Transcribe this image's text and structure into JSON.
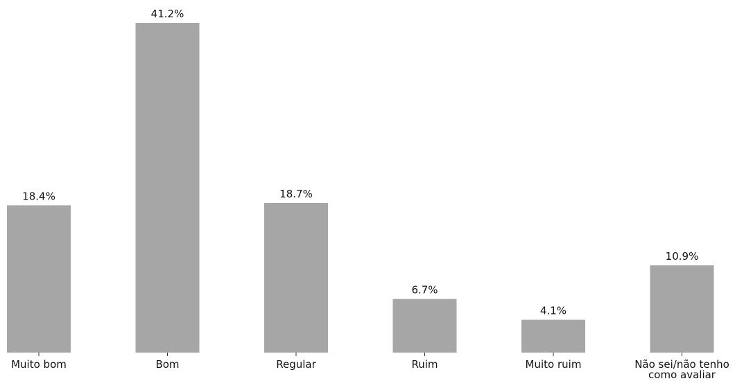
{
  "chart_data": {
    "type": "bar",
    "title": "",
    "xlabel": "",
    "ylabel": "",
    "categories": [
      "Muito bom",
      "Bom",
      "Regular",
      "Ruim",
      "Muito ruim",
      "Não sei/não tenho\ncomo avaliar"
    ],
    "values": [
      18.4,
      41.2,
      18.7,
      6.7,
      4.1,
      10.9
    ],
    "value_labels": [
      "18.4%",
      "41.2%",
      "18.7%",
      "6.7%",
      "4.1%",
      "10.9%"
    ],
    "ylim": [
      0,
      41.2
    ],
    "bar_color": "#a6a6a6",
    "grid": false,
    "legend": "none",
    "y_axis_visible": false
  }
}
